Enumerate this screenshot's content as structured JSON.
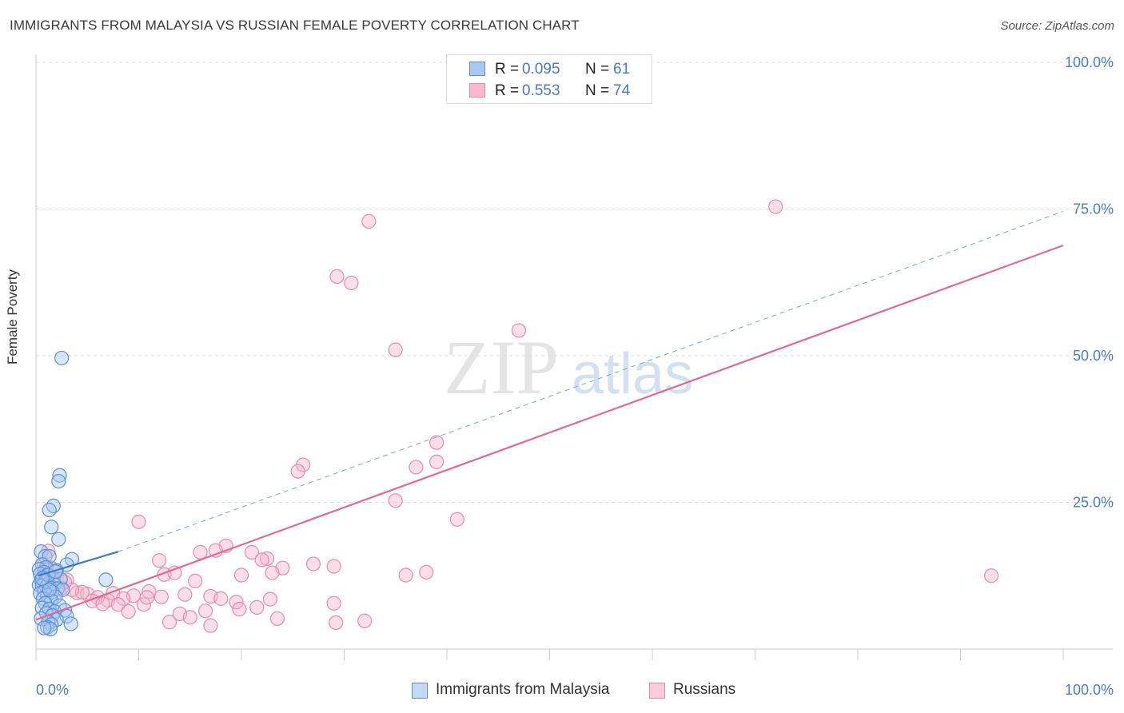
{
  "title": "IMMIGRANTS FROM MALAYSIA VS RUSSIAN FEMALE POVERTY CORRELATION CHART",
  "source": "Source: ZipAtlas.com",
  "watermark": {
    "zip": "ZIP",
    "atlas": "atlas"
  },
  "colors": {
    "blue_fill": "#a9c8f0",
    "blue_stroke": "#5b8fd6",
    "blue_line": "#3a78d0",
    "pink_fill": "#f7b9cb",
    "pink_stroke": "#e98aa8",
    "pink_line": "#e06a93",
    "grid": "#dddddd",
    "tick_text": "#4a7bc8"
  },
  "legend_top": [
    {
      "r_label": "R =",
      "r_value": "0.095",
      "n_label": "N =",
      "n_value": "61"
    },
    {
      "r_label": "R =",
      "r_value": "0.553",
      "n_label": "N =",
      "n_value": "74"
    }
  ],
  "chart_data": {
    "type": "scatter",
    "title": "IMMIGRANTS FROM MALAYSIA VS RUSSIAN FEMALE POVERTY CORRELATION CHART",
    "xlabel": "",
    "ylabel": "Female Poverty",
    "xlim": [
      0,
      100
    ],
    "ylim": [
      0,
      100
    ],
    "x_ticks": [
      "0.0%",
      "100.0%"
    ],
    "y_ticks": [
      "25.0%",
      "50.0%",
      "75.0%",
      "100.0%"
    ],
    "grid": true,
    "legend_position": "bottom",
    "series": [
      {
        "name": "Immigrants from Malaysia",
        "r": 0.095,
        "n": 61,
        "trend": {
          "x": [
            0.2,
            8.0
          ],
          "y": [
            12.5,
            16.6
          ]
        },
        "points": [
          [
            2.5,
            49.6
          ],
          [
            2.3,
            29.6
          ],
          [
            2.2,
            28.6
          ],
          [
            1.7,
            24.4
          ],
          [
            1.3,
            23.7
          ],
          [
            1.5,
            20.8
          ],
          [
            2.2,
            18.7
          ],
          [
            0.5,
            16.6
          ],
          [
            0.9,
            15.8
          ],
          [
            1.3,
            15.8
          ],
          [
            3.5,
            15.3
          ],
          [
            0.6,
            14.4
          ],
          [
            1.0,
            13.9
          ],
          [
            3.0,
            14.4
          ],
          [
            0.3,
            13.6
          ],
          [
            0.8,
            13.1
          ],
          [
            2.0,
            13.4
          ],
          [
            0.4,
            12.8
          ],
          [
            1.1,
            12.6
          ],
          [
            0.7,
            12.2
          ],
          [
            1.7,
            12.0
          ],
          [
            2.4,
            11.9
          ],
          [
            0.5,
            11.7
          ],
          [
            0.9,
            11.5
          ],
          [
            1.2,
            11.2
          ],
          [
            1.8,
            11.0
          ],
          [
            0.3,
            10.9
          ],
          [
            0.6,
            10.8
          ],
          [
            1.0,
            10.6
          ],
          [
            1.4,
            10.4
          ],
          [
            2.1,
            10.3
          ],
          [
            2.6,
            10.1
          ],
          [
            0.8,
            9.8
          ],
          [
            1.6,
            9.7
          ],
          [
            0.4,
            9.5
          ],
          [
            1.1,
            9.2
          ],
          [
            1.9,
            8.9
          ],
          [
            0.7,
            8.6
          ],
          [
            1.5,
            8.2
          ],
          [
            0.9,
            7.8
          ],
          [
            2.3,
            7.4
          ],
          [
            0.6,
            7.0
          ],
          [
            1.3,
            6.8
          ],
          [
            1.8,
            6.4
          ],
          [
            2.8,
            6.6
          ],
          [
            1.0,
            6.1
          ],
          [
            1.6,
            5.7
          ],
          [
            3.0,
            5.6
          ],
          [
            0.5,
            5.2
          ],
          [
            2.0,
            5.0
          ],
          [
            1.2,
            4.6
          ],
          [
            1.5,
            4.2
          ],
          [
            3.4,
            4.3
          ],
          [
            1.1,
            3.7
          ],
          [
            1.4,
            3.4
          ],
          [
            0.8,
            3.6
          ],
          [
            6.8,
            11.8
          ],
          [
            1.2,
            12.6
          ],
          [
            1.9,
            13.2
          ],
          [
            1.3,
            10.1
          ],
          [
            0.6,
            12.0
          ]
        ]
      },
      {
        "name": "Russians",
        "r": 0.553,
        "n": 74,
        "trend": {
          "x": [
            0.0,
            100.0
          ],
          "y": [
            5.0,
            68.8
          ]
        },
        "points": [
          [
            50.2,
            100.0
          ],
          [
            72.0,
            75.4
          ],
          [
            32.4,
            72.9
          ],
          [
            29.3,
            63.5
          ],
          [
            30.7,
            62.4
          ],
          [
            47.0,
            54.3
          ],
          [
            35.0,
            51.0
          ],
          [
            39.0,
            35.2
          ],
          [
            26.0,
            31.4
          ],
          [
            25.5,
            30.3
          ],
          [
            37.0,
            31.0
          ],
          [
            39.0,
            31.9
          ],
          [
            35.0,
            25.3
          ],
          [
            41.0,
            22.1
          ],
          [
            10.0,
            21.7
          ],
          [
            93.0,
            12.5
          ],
          [
            18.5,
            17.6
          ],
          [
            16.0,
            16.5
          ],
          [
            17.5,
            16.8
          ],
          [
            21.0,
            16.5
          ],
          [
            22.5,
            15.4
          ],
          [
            22.0,
            15.2
          ],
          [
            12.0,
            15.1
          ],
          [
            27.0,
            14.5
          ],
          [
            29.0,
            14.1
          ],
          [
            24.0,
            13.8
          ],
          [
            12.5,
            12.7
          ],
          [
            13.5,
            13.0
          ],
          [
            20.0,
            12.6
          ],
          [
            23.0,
            13.0
          ],
          [
            36.0,
            12.6
          ],
          [
            38.0,
            13.1
          ],
          [
            15.5,
            11.6
          ],
          [
            2.0,
            12.1
          ],
          [
            3.0,
            11.8
          ],
          [
            1.5,
            13.8
          ],
          [
            2.5,
            10.4
          ],
          [
            11.0,
            9.8
          ],
          [
            4.0,
            9.6
          ],
          [
            5.0,
            9.4
          ],
          [
            7.5,
            9.5
          ],
          [
            9.5,
            9.1
          ],
          [
            14.5,
            9.3
          ],
          [
            17.0,
            9.0
          ],
          [
            8.5,
            8.6
          ],
          [
            6.0,
            8.8
          ],
          [
            19.5,
            8.0
          ],
          [
            7.0,
            8.3
          ],
          [
            5.5,
            8.2
          ],
          [
            10.5,
            7.6
          ],
          [
            6.5,
            7.7
          ],
          [
            8.0,
            7.6
          ],
          [
            18.0,
            8.6
          ],
          [
            12.2,
            8.9
          ],
          [
            22.8,
            8.5
          ],
          [
            29.0,
            7.8
          ],
          [
            21.5,
            7.1
          ],
          [
            19.8,
            6.8
          ],
          [
            16.5,
            6.5
          ],
          [
            9.0,
            6.4
          ],
          [
            14.0,
            6.0
          ],
          [
            15.0,
            5.4
          ],
          [
            23.5,
            5.2
          ],
          [
            13.0,
            4.6
          ],
          [
            29.2,
            4.5
          ],
          [
            32.0,
            4.8
          ],
          [
            17.0,
            4.0
          ],
          [
            4.5,
            9.7
          ],
          [
            1.0,
            12.6
          ],
          [
            3.5,
            10.1
          ],
          [
            1.2,
            16.7
          ],
          [
            0.8,
            14.4
          ],
          [
            2.8,
            11.4
          ],
          [
            10.8,
            8.8
          ]
        ]
      }
    ]
  }
}
